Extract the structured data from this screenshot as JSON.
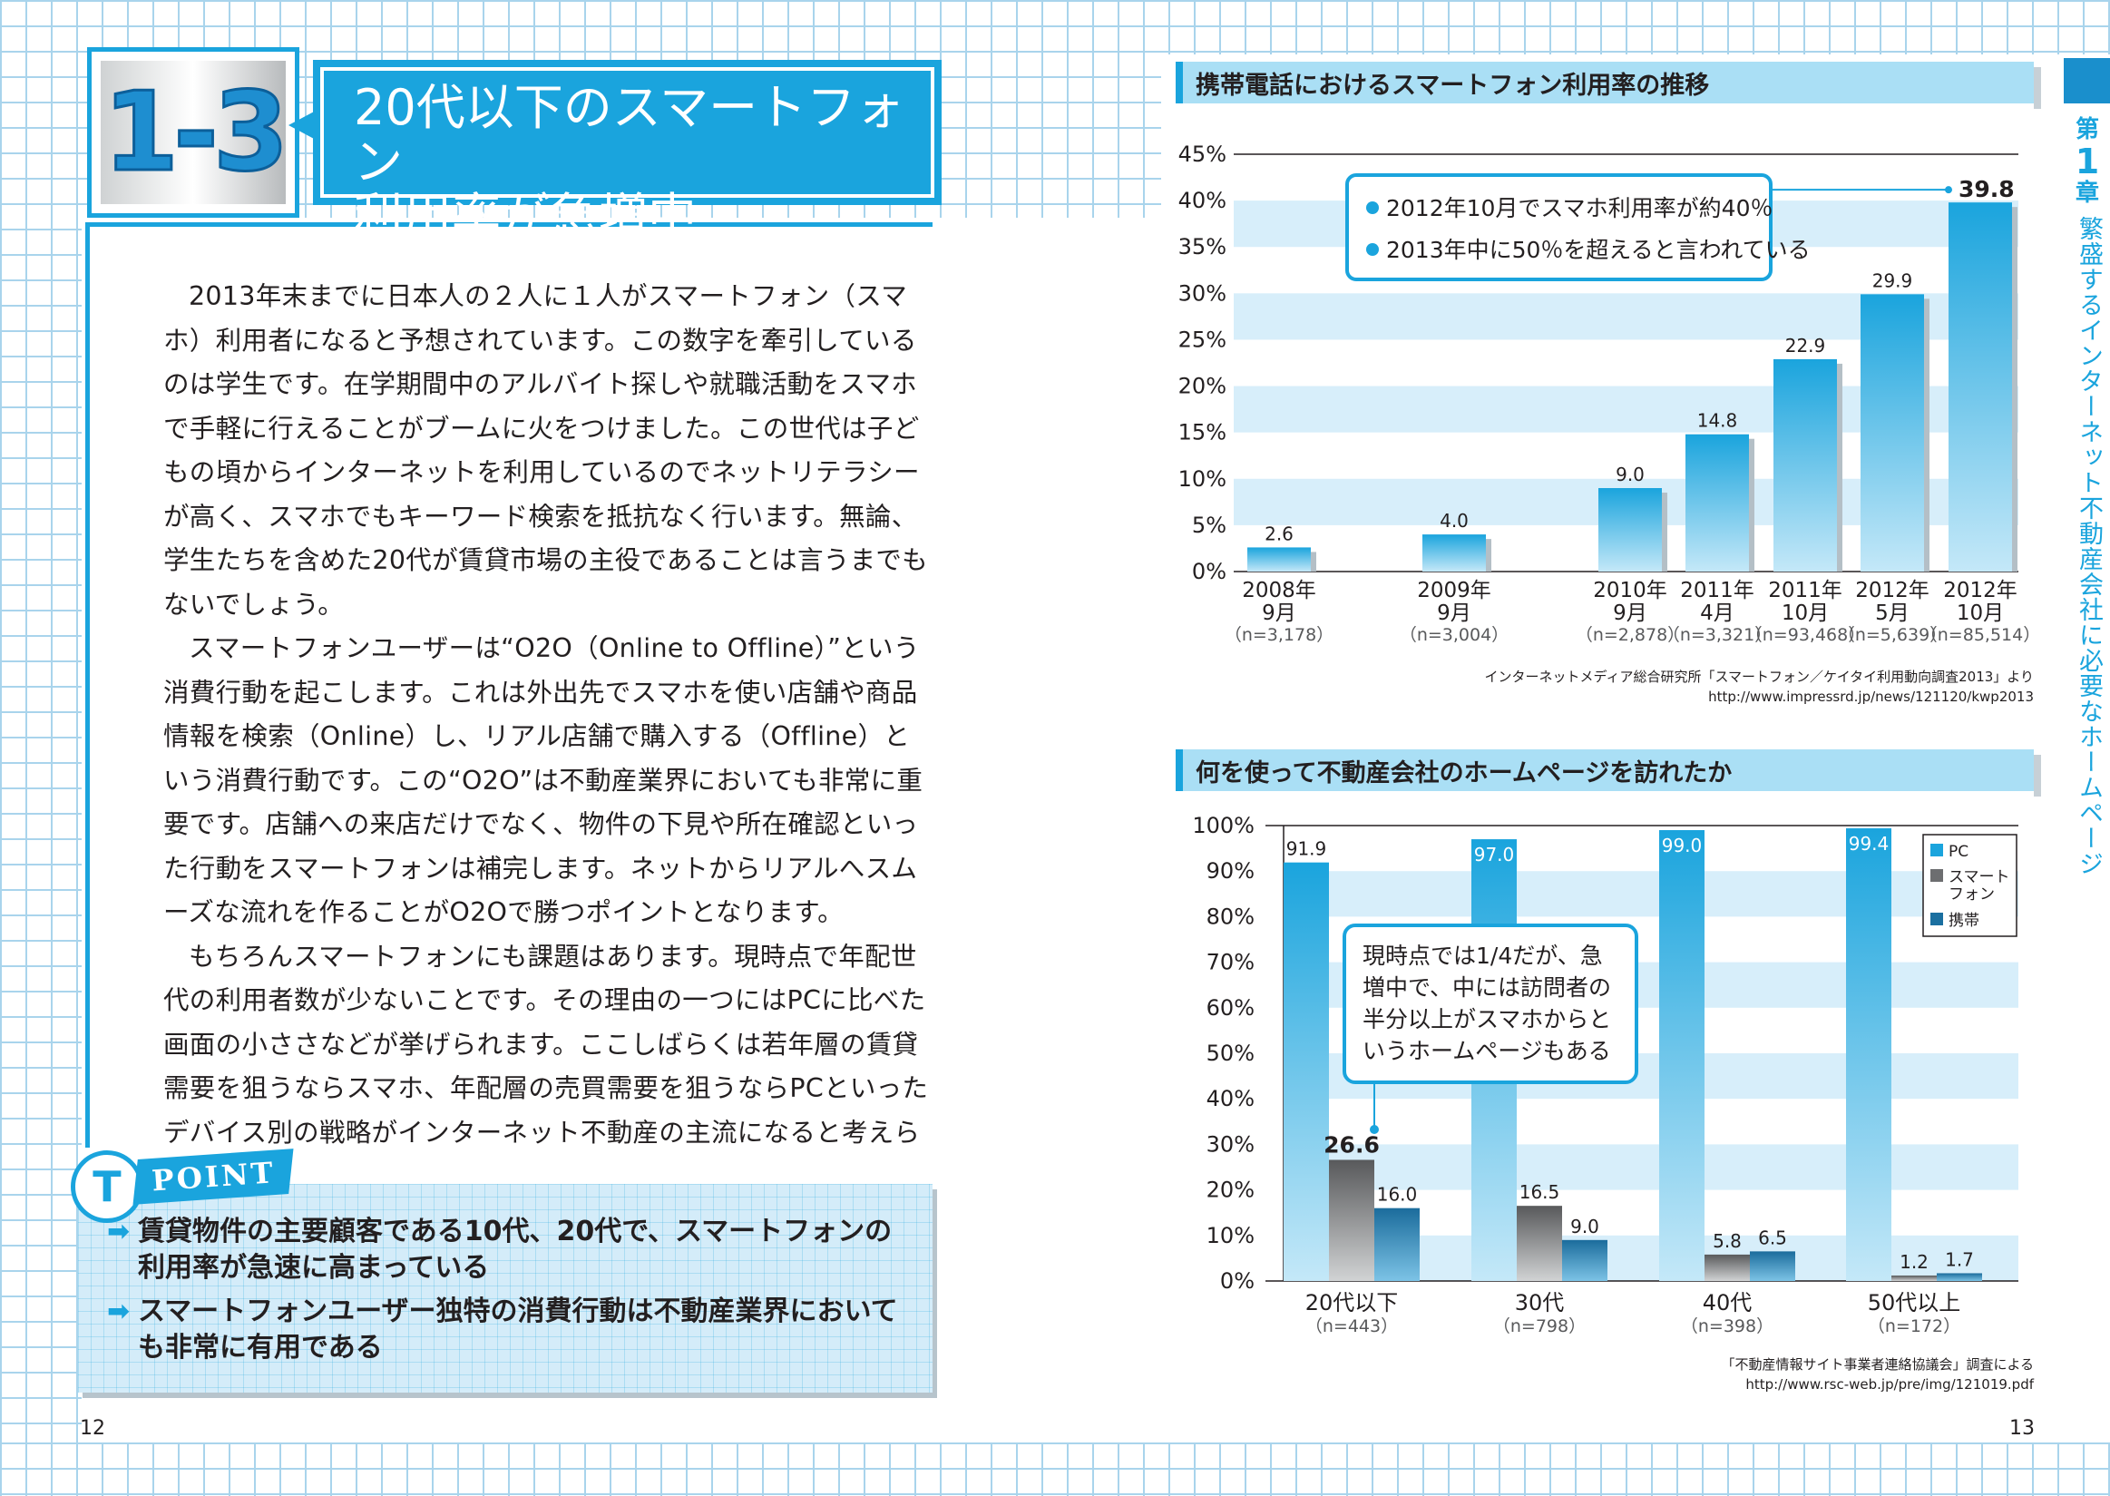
{
  "heading": {
    "section_number": "1-3",
    "title_line1": "20代以下のスマートフォン",
    "title_line2": "利用率が急増中"
  },
  "body": {
    "paragraphs": [
      "2013年末までに日本人の２人に１人がスマートフォン（スマホ）利用者になると予想されています。この数字を牽引しているのは学生です。在学期間中のアルバイト探しや就職活動をスマホで手軽に行えることがブームに火をつけました。この世代は子どもの頃からインターネットを利用しているのでネットリテラシーが高く、スマホでもキーワード検索を抵抗なく行います。無論、学生たちを含めた20代が賃貸市場の主役であることは言うまでもないでしょう。",
      "スマートフォンユーザーは“O2O（Online to Offline）”という消費行動を起こします。これは外出先でスマホを使い店舗や商品情報を検索（Online）し、リアル店舗で購入する（Offline）という消費行動です。この“O2O”は不動産業界においても非常に重要です。店舗への来店だけでなく、物件の下見や所在確認といった行動をスマートフォンは補完します。ネットからリアルへスムーズな流れを作ることがO2Oで勝つポイントとなります。",
      "もちろんスマートフォンにも課題はあります。現時点で年配世代の利用者数が少ないことです。その理由の一つにはPCに比べた画面の小ささなどが挙げられます。ここしばらくは若年層の賃貸需要を狙うならスマホ、年配層の売買需要を狙うならPCといったデバイス別の戦略がインターネット不動産の主流になると考えられます。"
    ]
  },
  "point": {
    "badge": "T",
    "label": "POINT",
    "arrow": "➡",
    "items": [
      "賃貸物件の主要顧客である10代、20代で、スマートフォンの利用率が急速に高まっている",
      "スマートフォンユーザー独特の消費行動は不動産業界においても非常に有用である"
    ]
  },
  "page_numbers": {
    "left": "12",
    "right": "13"
  },
  "side_tab": {
    "chapter_top": "第",
    "chapter_num": "1",
    "chapter_bottom": "章",
    "chapter_title": "繁盛するインターネット不動産会社に必要なホームページ"
  },
  "colors": {
    "accent": "#1aa4dd",
    "bar_blue": "#1aa4dd",
    "bar_gray": "#6d6e70",
    "bar_dark_blue": "#1a6fa0",
    "band": "#d7eefa"
  },
  "chart_data": [
    {
      "type": "bar",
      "title": "携帯電話におけるスマートフォン利用率の推移",
      "categories": [
        {
          "line1": "2008年",
          "line2": "9月",
          "n": "（n=3,178）"
        },
        {
          "line1": "2009年",
          "line2": "9月",
          "n": "（n=3,004）"
        },
        {
          "line1": "2010年",
          "line2": "9月",
          "n": "（n=2,878）"
        },
        {
          "line1": "2011年",
          "line2": "4月",
          "n": "（n=3,321）"
        },
        {
          "line1": "2011年",
          "line2": "10月",
          "n": "（n=93,468）"
        },
        {
          "line1": "2012年",
          "line2": "5月",
          "n": "（n=5,639）"
        },
        {
          "line1": "2012年",
          "line2": "10月",
          "n": "（n=85,514）"
        }
      ],
      "values": [
        2.6,
        4.0,
        9.0,
        14.8,
        22.9,
        29.9,
        39.8
      ],
      "value_labels": [
        "2.6",
        "4.0",
        "9.0",
        "14.8",
        "22.9",
        "29.9",
        "39.8"
      ],
      "yticks": [
        "0%",
        "5%",
        "10%",
        "15%",
        "20%",
        "25%",
        "30%",
        "35%",
        "40%",
        "45%"
      ],
      "ylim": [
        0,
        45
      ],
      "callout": [
        "2012年10月でスマホ利用率が約40％",
        "2013年中に50％を超えると言われている"
      ],
      "source": [
        "インターネットメディア総合研究所「スマートフォン／ケイタイ利用動向調査2013」より",
        "http://www.impressrd.jp/news/121120/kwp2013"
      ]
    },
    {
      "type": "bar",
      "title": "何を使って不動産会社のホームページを訪れたか",
      "categories": [
        {
          "label": "20代以下",
          "n": "（n=443）"
        },
        {
          "label": "30代",
          "n": "（n=798）"
        },
        {
          "label": "40代",
          "n": "（n=398）"
        },
        {
          "label": "50代以上",
          "n": "（n=172）"
        }
      ],
      "series": [
        {
          "name": "PC",
          "values": [
            91.9,
            97.0,
            99.0,
            99.4
          ],
          "labels": [
            "91.9",
            "97.0",
            "99.0",
            "99.4"
          ]
        },
        {
          "name": "スマートフォン",
          "legend_line1": "スマート",
          "legend_line2": "フォン",
          "values": [
            26.6,
            16.5,
            5.8,
            1.2
          ],
          "labels": [
            "26.6",
            "16.5",
            "5.8",
            "1.2"
          ]
        },
        {
          "name": "携帯",
          "values": [
            16.0,
            9.0,
            6.5,
            1.7
          ],
          "labels": [
            "16.0",
            "9.0",
            "6.5",
            "1.7"
          ]
        }
      ],
      "yticks": [
        "0%",
        "10%",
        "20%",
        "30%",
        "40%",
        "50%",
        "60%",
        "70%",
        "80%",
        "90%",
        "100%"
      ],
      "ylim": [
        0,
        100
      ],
      "callout": [
        "現時点では1/4だが、急",
        "増中で、中には訪問者の",
        "半分以上がスマホからと",
        "いうホームページもある"
      ],
      "source": [
        "「不動産情報サイト事業者連絡協議会」調査による",
        "http://www.rsc-web.jp/pre/img/121019.pdf"
      ]
    }
  ]
}
